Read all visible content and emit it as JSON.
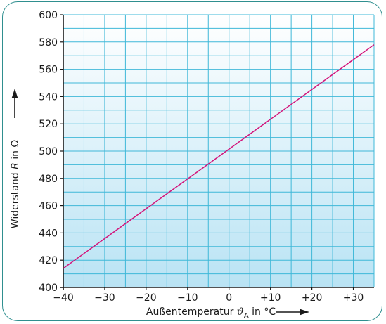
{
  "chart_data": {
    "type": "line",
    "title": "",
    "xlabel": {
      "prefix": "Außentemperatur ",
      "symbol": "ϑ",
      "subscript": "A",
      "suffix": " in °C"
    },
    "ylabel": {
      "prefix": "Widerstand ",
      "symbol": "R",
      "suffix": " in Ω"
    },
    "xlim": [
      -40,
      35
    ],
    "ylim": [
      400,
      600
    ],
    "x_ticks": [
      -40,
      -30,
      -20,
      -10,
      0,
      10,
      20,
      30
    ],
    "x_tick_labels": [
      "−40",
      "−30",
      "−20",
      "−10",
      "0",
      "+10",
      "+20",
      "+30"
    ],
    "y_ticks": [
      400,
      420,
      440,
      460,
      480,
      500,
      520,
      540,
      560,
      580,
      600
    ],
    "y_tick_labels": [
      "400",
      "420",
      "440",
      "460",
      "480",
      "500",
      "520",
      "540",
      "560",
      "580",
      "600"
    ],
    "grid": true,
    "series": [
      {
        "x": [
          -40,
          35
        ],
        "y": [
          414,
          578
        ]
      }
    ],
    "colors": {
      "line": "#d4147a",
      "grid": "#3fb8d8",
      "frame": "#2f8f8f",
      "background_top": "#ffffff",
      "background_bottom": "#b9e3f4"
    }
  }
}
